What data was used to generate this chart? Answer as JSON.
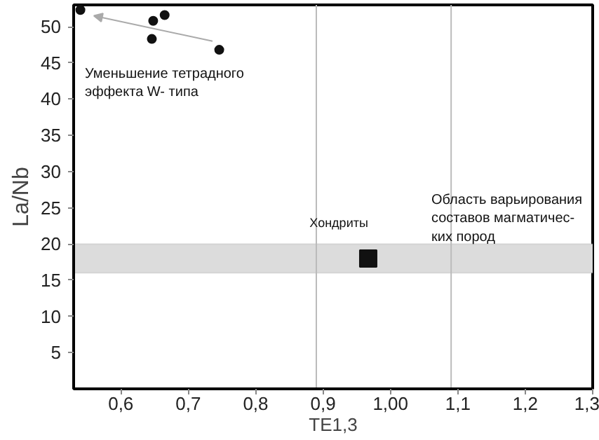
{
  "chart_data": {
    "type": "scatter",
    "xlabel": "TE1,3",
    "ylabel": "La/Nb",
    "xlim": [
      0.53,
      1.3
    ],
    "ylim": [
      0,
      53
    ],
    "xticks": [
      {
        "value": 0.6,
        "label": "0,6"
      },
      {
        "value": 0.7,
        "label": "0,7"
      },
      {
        "value": 0.8,
        "label": "0,8"
      },
      {
        "value": 0.9,
        "label": "0,9"
      },
      {
        "value": 1.0,
        "label": "1,00"
      },
      {
        "value": 1.1,
        "label": "1,1"
      },
      {
        "value": 1.2,
        "label": "1,2"
      },
      {
        "value": 1.3,
        "label": "1,3"
      }
    ],
    "yticks": [
      5,
      10,
      15,
      20,
      25,
      30,
      35,
      40,
      45,
      50
    ],
    "grid": false,
    "series": [
      {
        "color": "#111111",
        "marker": "circle",
        "x": [
          0.54,
          0.646,
          0.648,
          0.665,
          0.746
        ],
        "values": [
          52.3,
          48.3,
          50.8,
          51.6,
          46.8
        ]
      },
      {
        "color": "#111111",
        "marker": "square",
        "x": [
          0.967
        ],
        "values": [
          18
        ]
      }
    ],
    "bands": [
      {
        "axis": "y",
        "from": 16,
        "to": 20,
        "color": "#dcdcdc"
      }
    ],
    "ref_lines": [
      {
        "axis": "x",
        "value": 0.89,
        "color": "#bbbbbb"
      },
      {
        "axis": "x",
        "value": 1.09,
        "color": "#bbbbbb"
      }
    ],
    "annotations": [
      "Уменьшение тетрадного\nэффекта W- типа",
      {
        "text": "Хондриты",
        "x": 0.88,
        "y": 22
      },
      "Область варьирования\nсоставов магматичес-\nких пород"
    ]
  }
}
